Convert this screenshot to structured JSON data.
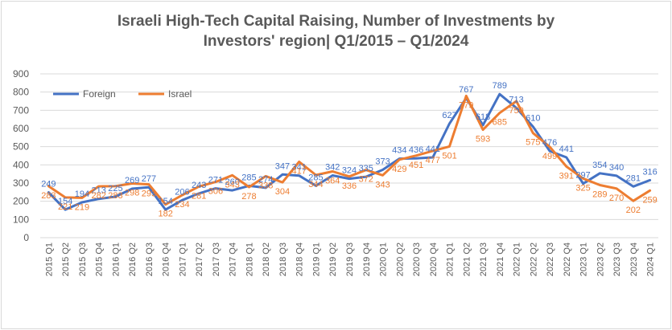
{
  "chart_data": {
    "type": "line",
    "title_line1": "Israeli High-Tech Capital Raising, Number of Investments by",
    "title_line2": "Investors' region| Q1/2015 – Q1/2024",
    "xlabel": "",
    "ylabel": "",
    "ylim": [
      0,
      900
    ],
    "yticks": [
      "0",
      "100",
      "200",
      "300",
      "400",
      "500",
      "600",
      "700",
      "800",
      "900"
    ],
    "grid": true,
    "legend_position": "top-left",
    "categories": [
      "2015 Q1",
      "2015 Q2",
      "2015 Q3",
      "2015 Q4",
      "2016 Q1",
      "2016 Q2",
      "2016 Q3",
      "2016 Q4",
      "2017 Q1",
      "2017 Q2",
      "2017 Q3",
      "2017 Q4",
      "2018 Q1",
      "2018 Q2",
      "2018 Q3",
      "2018 Q4",
      "2019 Q1",
      "2019 Q2",
      "2019 Q3",
      "2019 Q4",
      "2020 Q1",
      "2020 Q2",
      "2020 Q3",
      "2020 Q4",
      "2021 Q1",
      "2021 Q2",
      "2021 Q3",
      "2021 Q4",
      "2022 Q1",
      "2022 Q2",
      "2022 Q3",
      "2022 Q4",
      "2023 Q1",
      "2023 Q2",
      "2023 Q3",
      "2023 Q4",
      "2024 Q1"
    ],
    "series": [
      {
        "name": "Foreign",
        "color": "#4472c4",
        "values": [
          249,
          154,
          194,
          213,
          225,
          269,
          277,
          154,
          206,
          243,
          271,
          260,
          285,
          274,
          347,
          341,
          285,
          342,
          324,
          335,
          373,
          434,
          436,
          441,
          627,
          767,
          618,
          789,
          713,
          610,
          476,
          441,
          297,
          354,
          340,
          281,
          316
        ]
      },
      {
        "name": "Israel",
        "color": "#ed7d31",
        "values": [
          283,
          221,
          219,
          282,
          283,
          298,
          293,
          182,
          234,
          281,
          306,
          343,
          278,
          338,
          304,
          417,
          344,
          364,
          336,
          372,
          343,
          429,
          451,
          477,
          501,
          779,
          593,
          685,
          750,
          575,
          499,
          391,
          325,
          289,
          270,
          202,
          259
        ]
      }
    ]
  }
}
